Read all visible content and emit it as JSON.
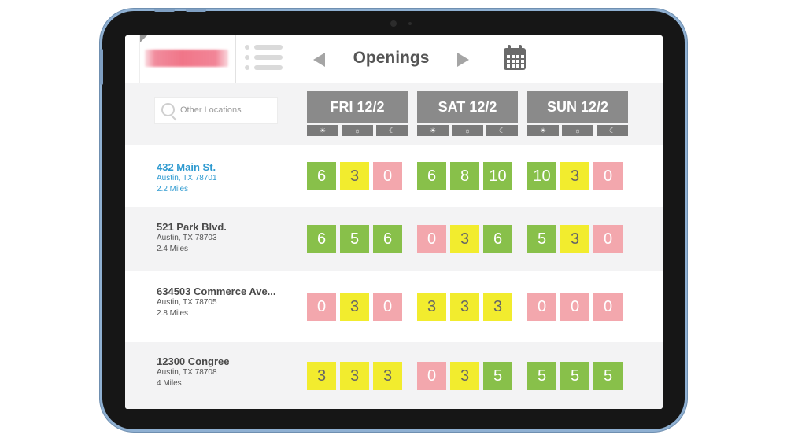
{
  "header": {
    "title": "Openings",
    "prev_icon": "chevron-left-icon",
    "next_icon": "chevron-right-icon",
    "calendar_icon": "calendar-icon",
    "menu_icon": "list-menu-icon"
  },
  "search": {
    "placeholder": "Other Locations"
  },
  "days": [
    {
      "label": "FRI 12/2",
      "slots": [
        "morning-icon",
        "sun-icon",
        "moon-icon"
      ]
    },
    {
      "label": "SAT 12/2",
      "slots": [
        "morning-icon",
        "sun-icon",
        "moon-icon"
      ]
    },
    {
      "label": "SUN 12/2",
      "slots": [
        "morning-icon",
        "sun-icon",
        "moon-icon"
      ]
    }
  ],
  "locations": [
    {
      "name": "432 Main St.",
      "city": "Austin, TX 78701",
      "distance": "2.2 Miles",
      "selected": true,
      "openings": [
        [
          6,
          3,
          0
        ],
        [
          6,
          8,
          10
        ],
        [
          10,
          3,
          0
        ]
      ]
    },
    {
      "name": "521 Park Blvd.",
      "city": "Austin, TX 78703",
      "distance": "2.4 Miles",
      "selected": false,
      "openings": [
        [
          6,
          5,
          6
        ],
        [
          0,
          3,
          6
        ],
        [
          5,
          3,
          0
        ]
      ]
    },
    {
      "name": "634503 Commerce Ave...",
      "city": "Austin, TX 78705",
      "distance": "2.8 Miles",
      "selected": false,
      "openings": [
        [
          0,
          3,
          0
        ],
        [
          3,
          3,
          3
        ],
        [
          0,
          0,
          0
        ]
      ]
    },
    {
      "name": "12300 Congree",
      "city": "Austin, TX 78708",
      "distance": "4 Miles",
      "selected": false,
      "openings": [
        [
          3,
          3,
          3
        ],
        [
          0,
          3,
          5
        ],
        [
          5,
          5,
          5
        ]
      ]
    }
  ],
  "colors": {
    "high": "#88c04a",
    "low": "#f2ec2e",
    "none": "#f3a7ad",
    "selected_text": "#2e9ad0",
    "day_header": "#8a8a8a"
  }
}
